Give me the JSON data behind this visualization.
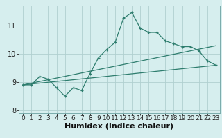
{
  "title": "",
  "xlabel": "Humidex (Indice chaleur)",
  "x_values": [
    0,
    1,
    2,
    3,
    4,
    5,
    6,
    7,
    8,
    9,
    10,
    11,
    12,
    13,
    14,
    15,
    16,
    17,
    18,
    19,
    20,
    21,
    22,
    23
  ],
  "y_main": [
    8.9,
    8.9,
    9.2,
    9.1,
    8.8,
    8.5,
    8.8,
    8.7,
    9.3,
    9.85,
    10.15,
    10.4,
    11.25,
    11.45,
    10.9,
    10.75,
    10.75,
    10.45,
    10.35,
    10.25,
    10.25,
    10.1,
    9.75,
    9.6
  ],
  "y_trend1": [
    8.9,
    8.93,
    8.96,
    8.99,
    9.02,
    9.05,
    9.08,
    9.11,
    9.14,
    9.17,
    9.2,
    9.23,
    9.26,
    9.29,
    9.32,
    9.35,
    9.38,
    9.41,
    9.44,
    9.47,
    9.5,
    9.53,
    9.56,
    9.59
  ],
  "y_trend2": [
    8.9,
    8.96,
    9.02,
    9.08,
    9.14,
    9.2,
    9.26,
    9.32,
    9.38,
    9.44,
    9.5,
    9.56,
    9.62,
    9.68,
    9.74,
    9.8,
    9.86,
    9.92,
    9.98,
    10.04,
    10.1,
    10.16,
    10.22,
    10.28
  ],
  "background_color": "#d6eeee",
  "grid_color": "#b0d0d0",
  "line_color": "#2e7d6e",
  "ylim": [
    7.9,
    11.7
  ],
  "yticks": [
    8,
    9,
    10,
    11
  ],
  "xticks": [
    0,
    1,
    2,
    3,
    4,
    5,
    6,
    7,
    8,
    9,
    10,
    11,
    12,
    13,
    14,
    15,
    16,
    17,
    18,
    19,
    20,
    21,
    22,
    23
  ],
  "fontsize": 6.5
}
